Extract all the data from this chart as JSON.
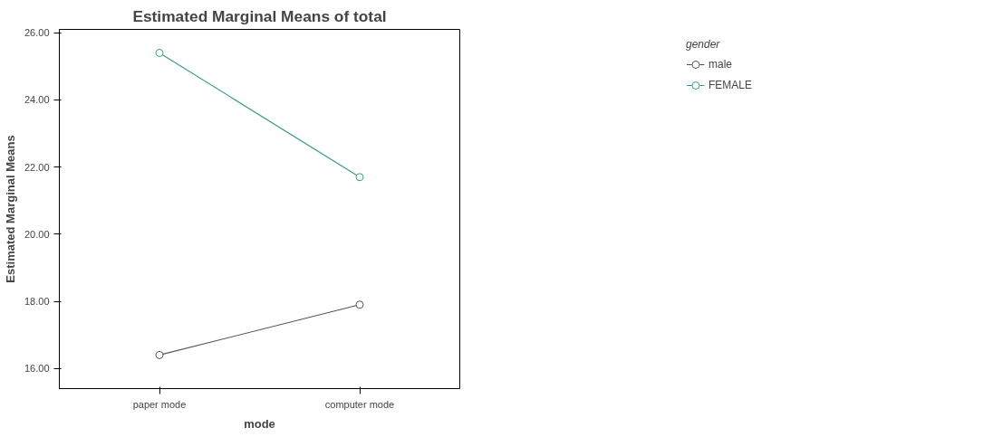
{
  "chart_data": {
    "type": "line",
    "title": "Estimated Marginal Means of total",
    "xlabel": "mode",
    "ylabel": "Estimated Marginal Means",
    "legend_title": "gender",
    "categories": [
      "paper mode",
      "computer mode"
    ],
    "series": [
      {
        "name": "male",
        "color": "#555555",
        "values": [
          16.4,
          17.9
        ]
      },
      {
        "name": "FEMALE",
        "color": "#3a9a8a",
        "values": [
          25.4,
          21.7
        ]
      }
    ],
    "ylim": [
      15.4,
      26.1
    ],
    "yticks": [
      {
        "value": 16,
        "label": "16.00"
      },
      {
        "value": 18,
        "label": "18.00"
      },
      {
        "value": 20,
        "label": "20.00"
      },
      {
        "value": 22,
        "label": "22.00"
      },
      {
        "value": 24,
        "label": "24.00"
      },
      {
        "value": 26,
        "label": "26.00"
      }
    ],
    "grid": false,
    "legend": "top right",
    "marker": "circle",
    "line_style": "solid"
  }
}
